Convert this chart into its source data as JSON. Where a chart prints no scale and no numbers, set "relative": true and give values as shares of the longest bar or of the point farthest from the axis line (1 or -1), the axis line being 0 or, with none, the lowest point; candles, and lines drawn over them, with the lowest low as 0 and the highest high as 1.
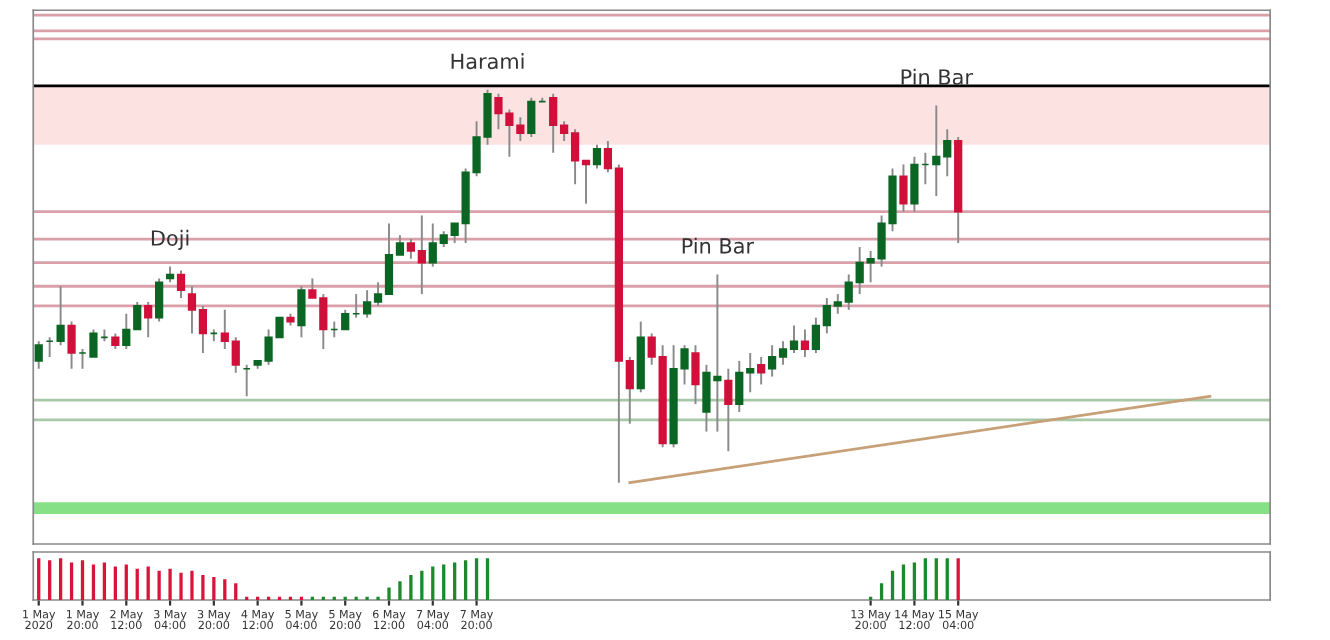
{
  "chart_data": [
    {
      "type": "candlestick",
      "relative": true,
      "tick_labels": false,
      "grid": false,
      "legend": false,
      "xlim": [
        "2020-05-01T02:00",
        "2020-05-19T22:00"
      ],
      "x": [
        "2020-05-01T04:00",
        "2020-05-01T08:00",
        "2020-05-01T12:00",
        "2020-05-01T16:00",
        "2020-05-01T20:00",
        "2020-05-02T00:00",
        "2020-05-02T04:00",
        "2020-05-02T08:00",
        "2020-05-02T12:00",
        "2020-05-02T16:00",
        "2020-05-02T20:00",
        "2020-05-03T00:00",
        "2020-05-03T04:00",
        "2020-05-03T08:00",
        "2020-05-03T12:00",
        "2020-05-03T16:00",
        "2020-05-03T20:00",
        "2020-05-04T00:00",
        "2020-05-04T04:00",
        "2020-05-04T08:00",
        "2020-05-04T12:00",
        "2020-05-04T16:00",
        "2020-05-04T20:00",
        "2020-05-05T00:00",
        "2020-05-05T04:00",
        "2020-05-05T08:00",
        "2020-05-05T12:00",
        "2020-05-05T16:00",
        "2020-05-05T20:00",
        "2020-05-06T00:00",
        "2020-05-06T04:00",
        "2020-05-06T08:00",
        "2020-05-06T12:00",
        "2020-05-06T16:00",
        "2020-05-06T20:00",
        "2020-05-07T00:00",
        "2020-05-07T04:00",
        "2020-05-07T08:00",
        "2020-05-07T12:00",
        "2020-05-07T16:00",
        "2020-05-07T20:00",
        "2020-05-08T00:00",
        "2020-05-08T04:00",
        "2020-05-08T08:00",
        "2020-05-08T12:00",
        "2020-05-08T16:00",
        "2020-05-08T20:00",
        "2020-05-09T00:00",
        "2020-05-09T04:00",
        "2020-05-09T08:00",
        "2020-05-09T12:00",
        "2020-05-09T16:00",
        "2020-05-09T20:00",
        "2020-05-10T00:00",
        "2020-05-10T04:00",
        "2020-05-10T08:00",
        "2020-05-10T12:00",
        "2020-05-10T16:00",
        "2020-05-10T20:00",
        "2020-05-11T00:00",
        "2020-05-11T04:00",
        "2020-05-11T08:00",
        "2020-05-11T12:00",
        "2020-05-11T16:00",
        "2020-05-11T20:00",
        "2020-05-12T00:00",
        "2020-05-12T04:00",
        "2020-05-12T08:00",
        "2020-05-12T12:00",
        "2020-05-12T16:00",
        "2020-05-12T20:00",
        "2020-05-13T00:00",
        "2020-05-13T04:00",
        "2020-05-13T08:00",
        "2020-05-13T12:00",
        "2020-05-13T16:00",
        "2020-05-13T20:00",
        "2020-05-14T00:00",
        "2020-05-14T04:00",
        "2020-05-14T08:00",
        "2020-05-14T12:00",
        "2020-05-14T16:00",
        "2020-05-14T20:00",
        "2020-05-15T00:00",
        "2020-05-15T04:00"
      ],
      "ohlc": [
        [
          0.31,
          0.36,
          0.29,
          0.35
        ],
        [
          0.36,
          0.37,
          0.32,
          0.36
        ],
        [
          0.36,
          0.5,
          0.35,
          0.4
        ],
        [
          0.4,
          0.41,
          0.29,
          0.33
        ],
        [
          0.33,
          0.34,
          0.29,
          0.33
        ],
        [
          0.32,
          0.39,
          0.32,
          0.38
        ],
        [
          0.37,
          0.39,
          0.36,
          0.37
        ],
        [
          0.37,
          0.38,
          0.34,
          0.35
        ],
        [
          0.35,
          0.43,
          0.34,
          0.39
        ],
        [
          0.39,
          0.46,
          0.39,
          0.45
        ],
        [
          0.45,
          0.46,
          0.37,
          0.42
        ],
        [
          0.42,
          0.52,
          0.41,
          0.51
        ],
        [
          0.52,
          0.55,
          0.51,
          0.53
        ],
        [
          0.53,
          0.54,
          0.47,
          0.49
        ],
        [
          0.48,
          0.5,
          0.38,
          0.44
        ],
        [
          0.44,
          0.45,
          0.33,
          0.38
        ],
        [
          0.38,
          0.39,
          0.36,
          0.38
        ],
        [
          0.38,
          0.44,
          0.34,
          0.36
        ],
        [
          0.36,
          0.37,
          0.28,
          0.3
        ],
        [
          0.29,
          0.3,
          0.22,
          0.29
        ],
        [
          0.3,
          0.31,
          0.29,
          0.31
        ],
        [
          0.31,
          0.39,
          0.3,
          0.37
        ],
        [
          0.37,
          0.42,
          0.37,
          0.42
        ],
        [
          0.42,
          0.43,
          0.4,
          0.41
        ],
        [
          0.4,
          0.5,
          0.37,
          0.49
        ],
        [
          0.49,
          0.52,
          0.47,
          0.47
        ],
        [
          0.47,
          0.48,
          0.34,
          0.39
        ],
        [
          0.39,
          0.41,
          0.37,
          0.39
        ],
        [
          0.39,
          0.44,
          0.39,
          0.43
        ],
        [
          0.43,
          0.48,
          0.42,
          0.43
        ],
        [
          0.43,
          0.49,
          0.42,
          0.46
        ],
        [
          0.46,
          0.51,
          0.45,
          0.48
        ],
        [
          0.48,
          0.66,
          0.48,
          0.58
        ],
        [
          0.58,
          0.63,
          0.58,
          0.61
        ],
        [
          0.61,
          0.62,
          0.57,
          0.59
        ],
        [
          0.59,
          0.68,
          0.48,
          0.56
        ],
        [
          0.56,
          0.66,
          0.55,
          0.61
        ],
        [
          0.61,
          0.64,
          0.6,
          0.63
        ],
        [
          0.63,
          0.66,
          0.61,
          0.66
        ],
        [
          0.66,
          0.8,
          0.61,
          0.79
        ],
        [
          0.79,
          0.92,
          0.78,
          0.88
        ],
        [
          0.88,
          1.0,
          0.86,
          0.99
        ],
        [
          0.98,
          0.99,
          0.9,
          0.94
        ],
        [
          0.94,
          0.95,
          0.83,
          0.91
        ],
        [
          0.91,
          0.93,
          0.87,
          0.89
        ],
        [
          0.89,
          0.98,
          0.88,
          0.97
        ],
        [
          0.97,
          0.98,
          0.97,
          0.97
        ],
        [
          0.98,
          0.99,
          0.84,
          0.91
        ],
        [
          0.91,
          0.92,
          0.87,
          0.89
        ],
        [
          0.89,
          0.9,
          0.76,
          0.82
        ],
        [
          0.82,
          0.82,
          0.71,
          0.81
        ],
        [
          0.81,
          0.86,
          0.8,
          0.85
        ],
        [
          0.85,
          0.87,
          0.79,
          0.8
        ],
        [
          0.8,
          0.81,
          0.0,
          0.31
        ],
        [
          0.31,
          0.32,
          0.15,
          0.24
        ],
        [
          0.24,
          0.41,
          0.23,
          0.37
        ],
        [
          0.37,
          0.38,
          0.3,
          0.32
        ],
        [
          0.32,
          0.35,
          0.09,
          0.1
        ],
        [
          0.1,
          0.35,
          0.09,
          0.29
        ],
        [
          0.29,
          0.35,
          0.25,
          0.34
        ],
        [
          0.33,
          0.35,
          0.2,
          0.25
        ],
        [
          0.18,
          0.3,
          0.13,
          0.28
        ],
        [
          0.26,
          0.53,
          0.13,
          0.27
        ],
        [
          0.26,
          0.29,
          0.08,
          0.2
        ],
        [
          0.2,
          0.31,
          0.18,
          0.28
        ],
        [
          0.28,
          0.33,
          0.23,
          0.29
        ],
        [
          0.3,
          0.32,
          0.25,
          0.28
        ],
        [
          0.29,
          0.35,
          0.27,
          0.32
        ],
        [
          0.32,
          0.36,
          0.3,
          0.34
        ],
        [
          0.34,
          0.4,
          0.33,
          0.36
        ],
        [
          0.36,
          0.39,
          0.32,
          0.34
        ],
        [
          0.34,
          0.42,
          0.33,
          0.4
        ],
        [
          0.4,
          0.47,
          0.38,
          0.45
        ],
        [
          0.45,
          0.48,
          0.43,
          0.46
        ],
        [
          0.46,
          0.53,
          0.44,
          0.51
        ],
        [
          0.51,
          0.6,
          0.48,
          0.56
        ],
        [
          0.56,
          0.59,
          0.51,
          0.57
        ],
        [
          0.57,
          0.68,
          0.55,
          0.66
        ],
        [
          0.66,
          0.8,
          0.64,
          0.78
        ],
        [
          0.78,
          0.81,
          0.69,
          0.71
        ],
        [
          0.71,
          0.83,
          0.69,
          0.81
        ],
        [
          0.81,
          0.84,
          0.76,
          0.81
        ],
        [
          0.81,
          0.96,
          0.73,
          0.83
        ],
        [
          0.83,
          0.9,
          0.78,
          0.87
        ],
        [
          0.87,
          0.88,
          0.61,
          0.69
        ]
      ],
      "colors": [
        "#0b6623",
        "#0b6623",
        "#0b6623",
        "#d0103a",
        "#0b6623",
        "#0b6623",
        "#0b6623",
        "#d0103a",
        "#0b6623",
        "#0b6623",
        "#d0103a",
        "#0b6623",
        "#0b6623",
        "#d0103a",
        "#d0103a",
        "#d0103a",
        "#0b6623",
        "#d0103a",
        "#d0103a",
        "#0b6623",
        "#0b6623",
        "#0b6623",
        "#0b6623",
        "#d0103a",
        "#0b6623",
        "#d0103a",
        "#d0103a",
        "#0b6623",
        "#0b6623",
        "#0b6623",
        "#0b6623",
        "#0b6623",
        "#0b6623",
        "#0b6623",
        "#d0103a",
        "#d0103a",
        "#0b6623",
        "#0b6623",
        "#0b6623",
        "#0b6623",
        "#0b6623",
        "#0b6623",
        "#d0103a",
        "#d0103a",
        "#d0103a",
        "#0b6623",
        "#0b6623",
        "#d0103a",
        "#d0103a",
        "#d0103a",
        "#d0103a",
        "#0b6623",
        "#d0103a",
        "#d0103a",
        "#d0103a",
        "#0b6623",
        "#d0103a",
        "#d0103a",
        "#0b6623",
        "#0b6623",
        "#d0103a",
        "#0b6623",
        "#0b6623",
        "#d0103a",
        "#0b6623",
        "#0b6623",
        "#d0103a",
        "#0b6623",
        "#0b6623",
        "#0b6623",
        "#d0103a",
        "#0b6623",
        "#0b6623",
        "#0b6623",
        "#0b6623",
        "#0b6623",
        "#0b6623",
        "#0b6623",
        "#0b6623",
        "#d0103a",
        "#0b6623",
        "#0b6623",
        "#0b6623",
        "#0b6623",
        "#d0103a"
      ],
      "series": [
        {
          "type": "line",
          "x": [
            "2020-05-10T04:00",
            "2020-05-19T00:00"
          ],
          "values": [
            0.0,
            0.22
          ],
          "color": "#c8a078"
        }
      ],
      "ref_lines": [
        {
          "axis": "y",
          "value": 1.19,
          "color": "#d9a0aa"
        },
        {
          "axis": "y",
          "value": 1.15,
          "color": "#d9a0aa"
        },
        {
          "axis": "y",
          "value": 1.13,
          "color": "#d9a0aa"
        },
        {
          "axis": "y",
          "value": 1.01,
          "color": "#000000"
        },
        {
          "axis": "y",
          "value": 0.69,
          "color": "#d9a0aa"
        },
        {
          "axis": "y",
          "value": 0.62,
          "color": "#d9a0aa"
        },
        {
          "axis": "y",
          "value": 0.56,
          "color": "#d9a0aa"
        },
        {
          "axis": "y",
          "value": 0.5,
          "color": "#d9a0aa"
        },
        {
          "axis": "y",
          "value": 0.45,
          "color": "#d9a0aa"
        },
        {
          "axis": "y",
          "value": 0.21,
          "color": "#a8c8a8"
        },
        {
          "axis": "y",
          "value": 0.16,
          "color": "#a8c8a8"
        }
      ],
      "bands": [
        {
          "axis": "y",
          "from": 0.86,
          "to": 1.01,
          "color": "#fde2e2"
        },
        {
          "axis": "y",
          "from": -0.08,
          "to": -0.05,
          "color": "#86e086"
        }
      ],
      "annotations": [
        {
          "text": "Doji",
          "x": "2020-05-03T04:00",
          "y": 0.55
        },
        {
          "text": "Harami",
          "x": "2020-05-08T00:00",
          "y": 1.0
        },
        {
          "text": "Pin Bar",
          "x": "2020-05-11T12:00",
          "y": 0.53
        },
        {
          "text": "Pin Bar",
          "x": "2020-05-14T20:00",
          "y": 0.96
        }
      ]
    },
    {
      "type": "bar",
      "relative": true,
      "tick_labels": "x",
      "grid": false,
      "legend": false,
      "xlim": [
        "2020-05-01T02:00",
        "2020-05-19T22:00"
      ],
      "xticks": [
        {
          "value": "2020-05-01T04:00",
          "label": "1 May 2020"
        },
        {
          "value": "2020-05-01T20:00",
          "label": "1 May 20:00"
        },
        {
          "value": "2020-05-02T12:00",
          "label": "2 May 12:00"
        },
        {
          "value": "2020-05-03T04:00",
          "label": "3 May 04:00"
        },
        {
          "value": "2020-05-03T20:00",
          "label": "3 May 20:00"
        },
        {
          "value": "2020-05-04T12:00",
          "label": "4 May 12:00"
        },
        {
          "value": "2020-05-05T04:00",
          "label": "5 May 04:00"
        },
        {
          "value": "2020-05-05T20:00",
          "label": "5 May 20:00"
        },
        {
          "value": "2020-05-06T12:00",
          "label": "6 May 12:00"
        },
        {
          "value": "2020-05-07T04:00",
          "label": "7 May 04:00"
        },
        {
          "value": "2020-05-07T20:00",
          "label": "7 May 20:00"
        },
        {
          "value": "2020-05-13T20:00",
          "label": "13 May 20:00"
        },
        {
          "value": "2020-05-14T12:00",
          "label": "14 May 12:00"
        },
        {
          "value": "2020-05-15T04:00",
          "label": "15 May 04:00"
        }
      ],
      "x": [
        "2020-05-01T04:00",
        "2020-05-01T08:00",
        "2020-05-01T12:00",
        "2020-05-01T16:00",
        "2020-05-01T20:00",
        "2020-05-02T00:00",
        "2020-05-02T04:00",
        "2020-05-02T08:00",
        "2020-05-02T12:00",
        "2020-05-02T16:00",
        "2020-05-02T20:00",
        "2020-05-03T00:00",
        "2020-05-03T04:00",
        "2020-05-03T08:00",
        "2020-05-03T12:00",
        "2020-05-03T16:00",
        "2020-05-03T20:00",
        "2020-05-04T00:00",
        "2020-05-04T04:00",
        "2020-05-04T08:00",
        "2020-05-04T12:00",
        "2020-05-04T16:00",
        "2020-05-04T20:00",
        "2020-05-05T00:00",
        "2020-05-05T04:00",
        "2020-05-05T08:00",
        "2020-05-05T12:00",
        "2020-05-05T16:00",
        "2020-05-05T20:00",
        "2020-05-06T00:00",
        "2020-05-06T04:00",
        "2020-05-06T08:00",
        "2020-05-06T12:00",
        "2020-05-06T16:00",
        "2020-05-06T20:00",
        "2020-05-07T00:00",
        "2020-05-07T04:00",
        "2020-05-07T08:00",
        "2020-05-07T12:00",
        "2020-05-07T16:00",
        "2020-05-07T20:00",
        "2020-05-08T00:00",
        "2020-05-08T04:00",
        "2020-05-08T08:00",
        "2020-05-08T12:00",
        "2020-05-08T16:00",
        "2020-05-08T20:00",
        "2020-05-09T00:00",
        "2020-05-09T04:00",
        "2020-05-09T08:00",
        "2020-05-09T12:00",
        "2020-05-09T16:00",
        "2020-05-09T20:00",
        "2020-05-10T00:00",
        "2020-05-10T04:00",
        "2020-05-10T08:00",
        "2020-05-10T12:00",
        "2020-05-10T16:00",
        "2020-05-10T20:00",
        "2020-05-11T00:00",
        "2020-05-11T04:00",
        "2020-05-11T08:00",
        "2020-05-11T12:00",
        "2020-05-11T16:00",
        "2020-05-11T20:00",
        "2020-05-12T00:00",
        "2020-05-12T04:00",
        "2020-05-12T08:00",
        "2020-05-12T12:00",
        "2020-05-12T16:00",
        "2020-05-12T20:00",
        "2020-05-13T00:00",
        "2020-05-13T04:00",
        "2020-05-13T08:00",
        "2020-05-13T12:00",
        "2020-05-13T16:00",
        "2020-05-13T20:00",
        "2020-05-14T00:00",
        "2020-05-14T04:00",
        "2020-05-14T08:00",
        "2020-05-14T12:00",
        "2020-05-14T16:00",
        "2020-05-14T20:00",
        "2020-05-15T00:00",
        "2020-05-15T04:00"
      ],
      "values": [
        1,
        0.95,
        1,
        0.9,
        0.95,
        0.85,
        0.9,
        0.8,
        0.85,
        0.75,
        0.8,
        0.7,
        0.75,
        0.65,
        0.7,
        0.6,
        0.55,
        0.5,
        0.4,
        0.08,
        0.08,
        0.08,
        0.08,
        0.08,
        0.08,
        0.08,
        0.08,
        0.08,
        0.08,
        0.08,
        0.08,
        0.08,
        0.3,
        0.45,
        0.6,
        0.7,
        0.8,
        0.85,
        0.9,
        0.95,
        1,
        1,
        null,
        null,
        null,
        null,
        null,
        null,
        null,
        null,
        null,
        null,
        null,
        null,
        null,
        null,
        null,
        null,
        null,
        null,
        null,
        null,
        null,
        null,
        null,
        null,
        null,
        null,
        null,
        null,
        null,
        null,
        null,
        null,
        null,
        null,
        0.08,
        0.4,
        0.7,
        0.85,
        0.9,
        1,
        1,
        1,
        1
      ],
      "colors": [
        "#d9143a",
        "#d9143a",
        "#d9143a",
        "#d9143a",
        "#d9143a",
        "#d9143a",
        "#d9143a",
        "#d9143a",
        "#d9143a",
        "#d9143a",
        "#d9143a",
        "#d9143a",
        "#d9143a",
        "#d9143a",
        "#d9143a",
        "#d9143a",
        "#d9143a",
        "#d9143a",
        "#d9143a",
        "#d9143a",
        "#d9143a",
        "#d9143a",
        "#d9143a",
        "#d9143a",
        "#d9143a",
        "#1a8a2a",
        "#1a8a2a",
        "#1a8a2a",
        "#1a8a2a",
        "#1a8a2a",
        "#1a8a2a",
        "#1a8a2a",
        "#1a8a2a",
        "#1a8a2a",
        "#1a8a2a",
        "#1a8a2a",
        "#1a8a2a",
        "#1a8a2a",
        "#1a8a2a",
        "#1a8a2a",
        "#1a8a2a",
        "#1a8a2a",
        "#1a8a2a",
        "#1a8a2a",
        "#1a8a2a",
        "#1a8a2a",
        "#1a8a2a",
        "#1a8a2a",
        "#1a8a2a",
        "#1a8a2a",
        "#1a8a2a",
        "#1a8a2a",
        "#1a8a2a",
        "#1a8a2a",
        "#1a8a2a",
        "#1a8a2a",
        "#1a8a2a",
        "#1a8a2a",
        "#1a8a2a",
        "#1a8a2a",
        "#1a8a2a",
        "#1a8a2a",
        "#1a8a2a",
        "#1a8a2a",
        "#1a8a2a",
        "#1a8a2a",
        "#1a8a2a",
        "#1a8a2a",
        "#1a8a2a",
        "#1a8a2a",
        "#1a8a2a",
        "#1a8a2a",
        "#1a8a2a",
        "#1a8a2a",
        "#1a8a2a",
        "#1a8a2a",
        "#1a8a2a",
        "#1a8a2a",
        "#1a8a2a",
        "#1a8a2a",
        "#1a8a2a",
        "#1a8a2a",
        "#1a8a2a",
        "#1a8a2a",
        "#d9143a"
      ]
    }
  ]
}
